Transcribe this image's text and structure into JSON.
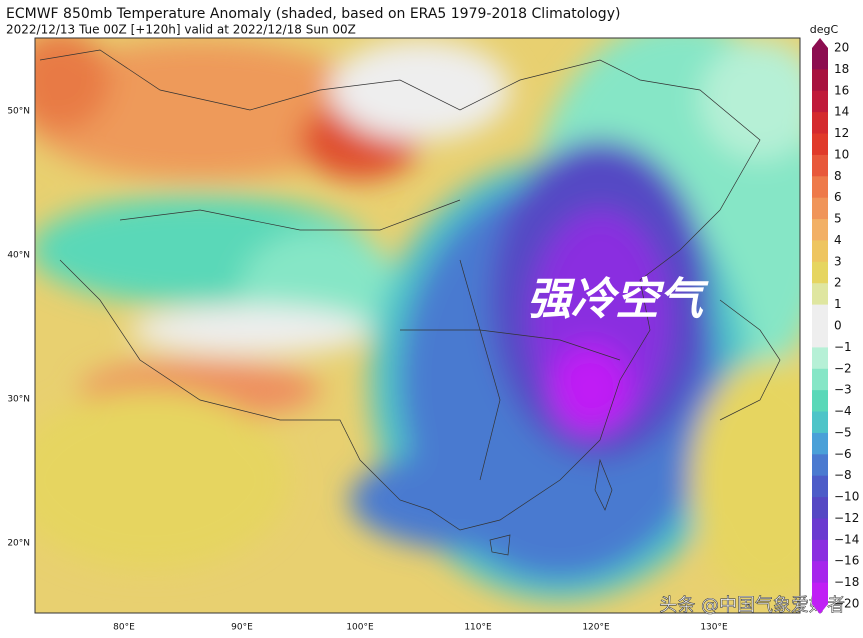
{
  "header": {
    "title": "ECMWF 850mb Temperature Anomaly (shaded, based on ERA5 1979-2018 Climatology)",
    "subtitle": "2022/12/13 Tue 00Z [+120h] valid at 2022/12/18 Sun 00Z"
  },
  "map": {
    "lat_labels": [
      "50°N",
      "40°N",
      "30°N",
      "20°N"
    ],
    "lon_labels": [
      "80°E",
      "90°E",
      "100°E",
      "110°E",
      "120°E",
      "130°E"
    ],
    "overlay_text": "强冷空气",
    "watermark": "头条 @中国气象爱好者"
  },
  "colorbar": {
    "unit": "degC",
    "labels": [
      "20",
      "18",
      "16",
      "14",
      "12",
      "10",
      "8",
      "6",
      "5",
      "4",
      "3",
      "2",
      "1",
      "0",
      "−1",
      "−2",
      "−3",
      "−4",
      "−5",
      "−6",
      "−8",
      "−10",
      "−12",
      "−14",
      "−16",
      "−18",
      "−20"
    ],
    "colors": [
      "#8c0d50",
      "#a8123f",
      "#c01a3a",
      "#d42a2e",
      "#e03a2a",
      "#e8583a",
      "#ee7a4a",
      "#f0955a",
      "#f2b066",
      "#eec560",
      "#e6d560",
      "#dfe6a0",
      "#eeeeee",
      "#eeeeee",
      "#b6f0d6",
      "#86e6c6",
      "#5ad8b8",
      "#4ec4c8",
      "#4aa0d8",
      "#4a7ad0",
      "#4c5cc8",
      "#5548c4",
      "#6a3ad0",
      "#8a2ee0",
      "#a626ec",
      "#c01ff5"
    ]
  }
}
